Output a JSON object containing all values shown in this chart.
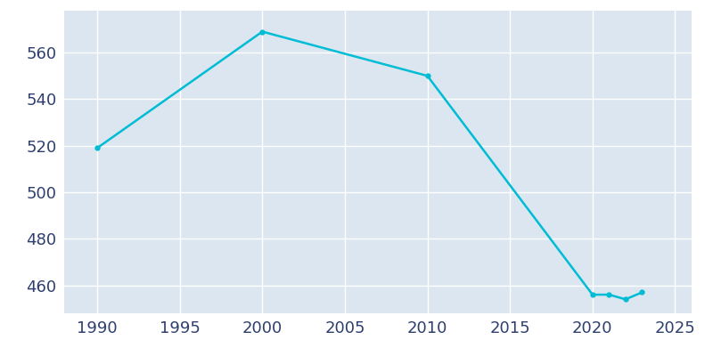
{
  "years": [
    1990,
    2000,
    2010,
    2020,
    2021,
    2022,
    2023
  ],
  "population": [
    519,
    569,
    550,
    456,
    456,
    454,
    457
  ],
  "line_color": "#00bcd4",
  "axes_facecolor": "#dce6f0",
  "figure_facecolor": "#ffffff",
  "grid_color": "#ffffff",
  "xlim": [
    1988,
    2026
  ],
  "ylim": [
    448,
    578
  ],
  "xticks": [
    1990,
    1995,
    2000,
    2005,
    2010,
    2015,
    2020,
    2025
  ],
  "yticks": [
    460,
    480,
    500,
    520,
    540,
    560
  ],
  "tick_color": "#2e3f6e",
  "tick_fontsize": 13,
  "line_width": 1.8
}
